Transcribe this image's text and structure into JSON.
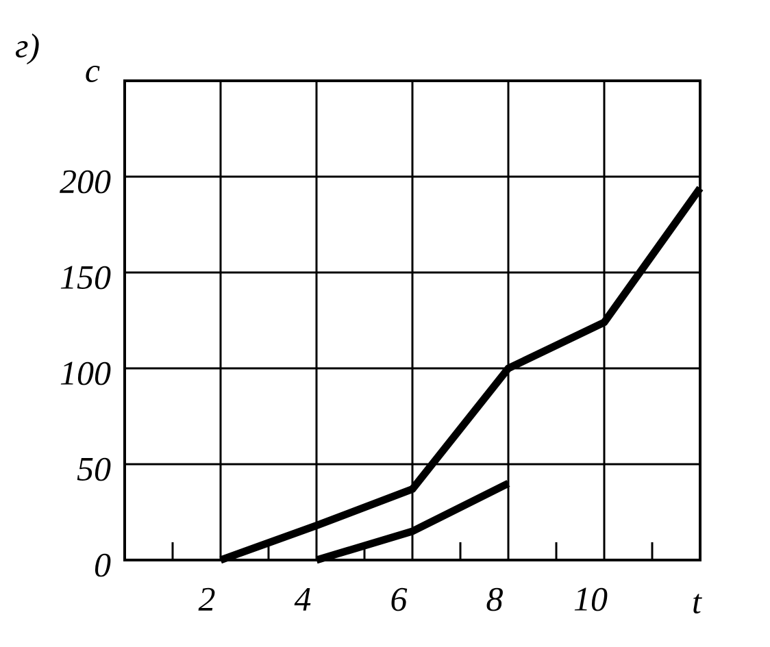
{
  "chart_data": {
    "type": "line",
    "panel_label": "г)",
    "y_label": "c",
    "x_label": "t",
    "series": [
      {
        "color": "#000000",
        "x": [
          2,
          4,
          6,
          8,
          10,
          12
        ],
        "values": [
          0,
          18,
          37,
          100,
          124,
          194
        ]
      },
      {
        "color": "#000000",
        "x": [
          4,
          6,
          8
        ],
        "values": [
          0,
          15,
          40
        ]
      }
    ],
    "xlim": [
      0,
      12
    ],
    "xticks": [
      2,
      4,
      6,
      8,
      10
    ],
    "xminorticks": [
      1,
      3,
      5,
      7,
      9,
      11
    ],
    "ylim": [
      0,
      250
    ],
    "yticks": [
      0,
      50,
      100,
      150,
      200
    ],
    "grid": true
  }
}
